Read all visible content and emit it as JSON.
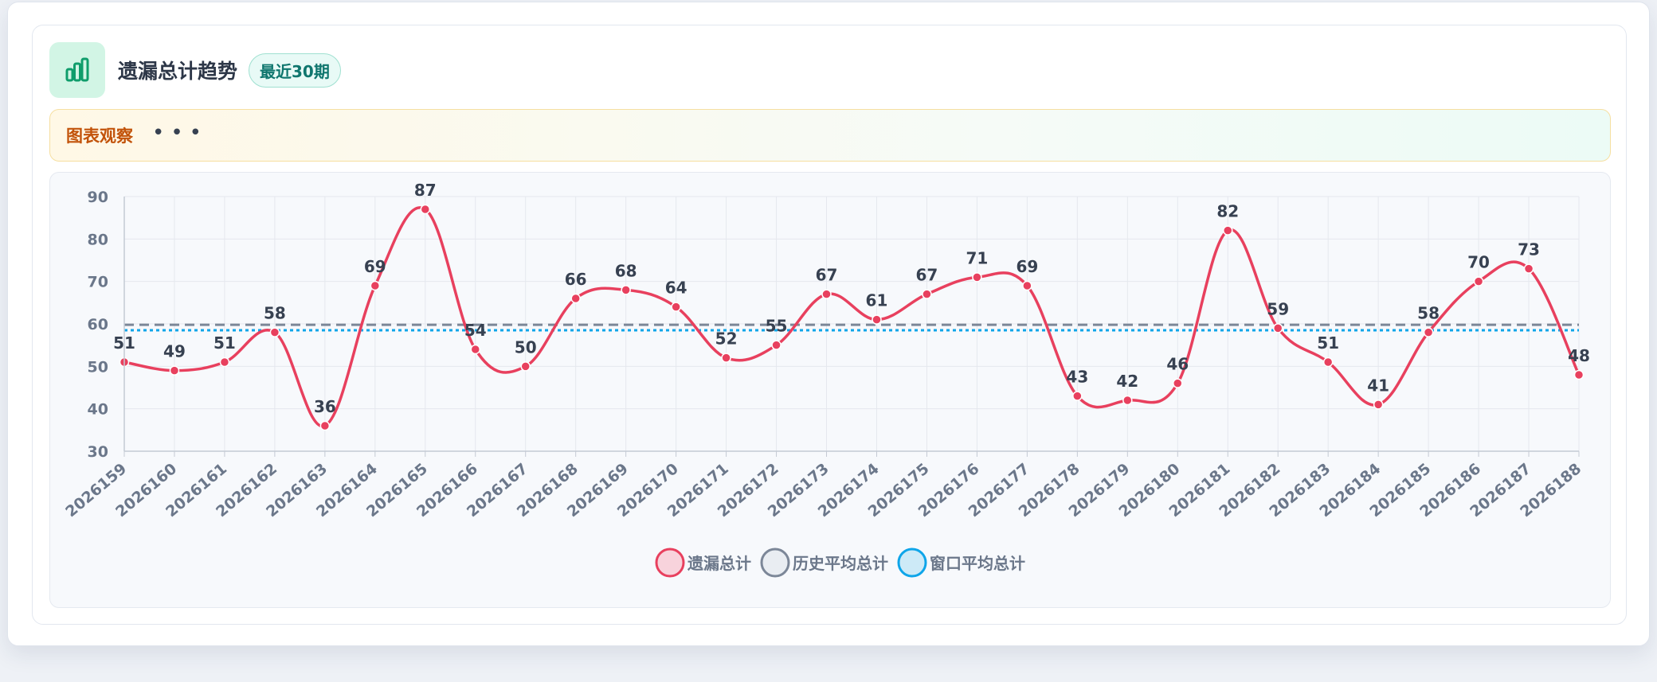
{
  "header": {
    "title": "遗漏总计趋势",
    "badge": "最近30期",
    "icon": "bar-chart-icon"
  },
  "observation": {
    "label": "图表观察",
    "dots": "•••"
  },
  "colors": {
    "series_main": "#e8405e",
    "series_hist": "#7c8798",
    "series_window": "#0ea5e9"
  },
  "chart_data": {
    "type": "line",
    "title": "",
    "xlabel": "",
    "ylabel": "",
    "ylim": [
      30,
      90
    ],
    "yticks": [
      30,
      40,
      50,
      60,
      70,
      80,
      90
    ],
    "grid": true,
    "legend_position": "bottom-center",
    "categories": [
      "2026159",
      "2026160",
      "2026161",
      "2026162",
      "2026163",
      "2026164",
      "2026165",
      "2026166",
      "2026167",
      "2026168",
      "2026169",
      "2026170",
      "2026171",
      "2026172",
      "2026173",
      "2026174",
      "2026175",
      "2026176",
      "2026177",
      "2026178",
      "2026179",
      "2026180",
      "2026181",
      "2026182",
      "2026183",
      "2026184",
      "2026185",
      "2026186",
      "2026187",
      "2026188"
    ],
    "series": [
      {
        "name": "遗漏总计",
        "style": "smooth-line-with-markers-and-labels",
        "values": [
          51,
          49,
          51,
          58,
          36,
          69,
          87,
          54,
          50,
          66,
          68,
          64,
          52,
          55,
          67,
          61,
          67,
          71,
          69,
          43,
          42,
          46,
          82,
          59,
          51,
          41,
          58,
          70,
          73,
          48
        ]
      },
      {
        "name": "历史平均总计",
        "style": "dashed",
        "value": 59.8
      },
      {
        "name": "窗口平均总计",
        "style": "dotted",
        "value": 58.5
      }
    ]
  }
}
